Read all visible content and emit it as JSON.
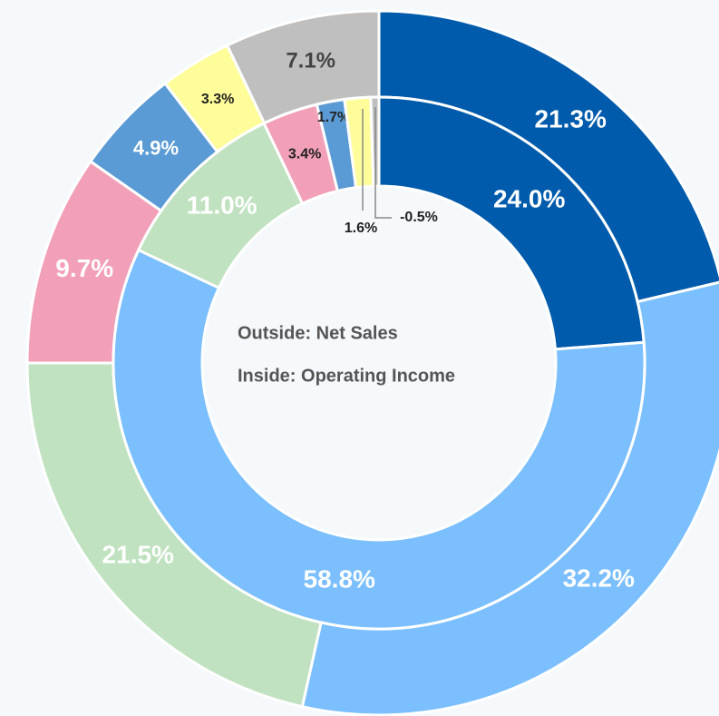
{
  "chart_data": {
    "type": "nested-donut",
    "center_labels": [
      "Outside: Net Sales",
      "Inside: Operating Income"
    ],
    "series": [
      {
        "values": [
          21.3,
          32.2,
          21.5,
          9.7,
          4.9,
          3.3,
          7.1
        ],
        "value_labels": [
          "21.3%",
          "32.2%",
          "21.5%",
          "9.7%",
          "4.9%",
          "3.3%",
          "7.1%"
        ],
        "colors": [
          "#005bac",
          "#7bbfff",
          "#c0e2c0",
          "#f29fb8",
          "#5b9bd5",
          "#fffd9a",
          "#bfbfbf"
        ]
      },
      {
        "values": [
          24.0,
          58.8,
          11.0,
          3.4,
          1.7,
          1.6,
          -0.5
        ],
        "value_labels": [
          "24.0%",
          "58.8%",
          "11.0%",
          "3.4%",
          "1.7%",
          "1.6%",
          "-0.5%"
        ],
        "colors": [
          "#005bac",
          "#7bbfff",
          "#c0e2c0",
          "#f29fb8",
          "#5b9bd5",
          "#fffd9a",
          "#bfbfbf"
        ]
      }
    ]
  }
}
